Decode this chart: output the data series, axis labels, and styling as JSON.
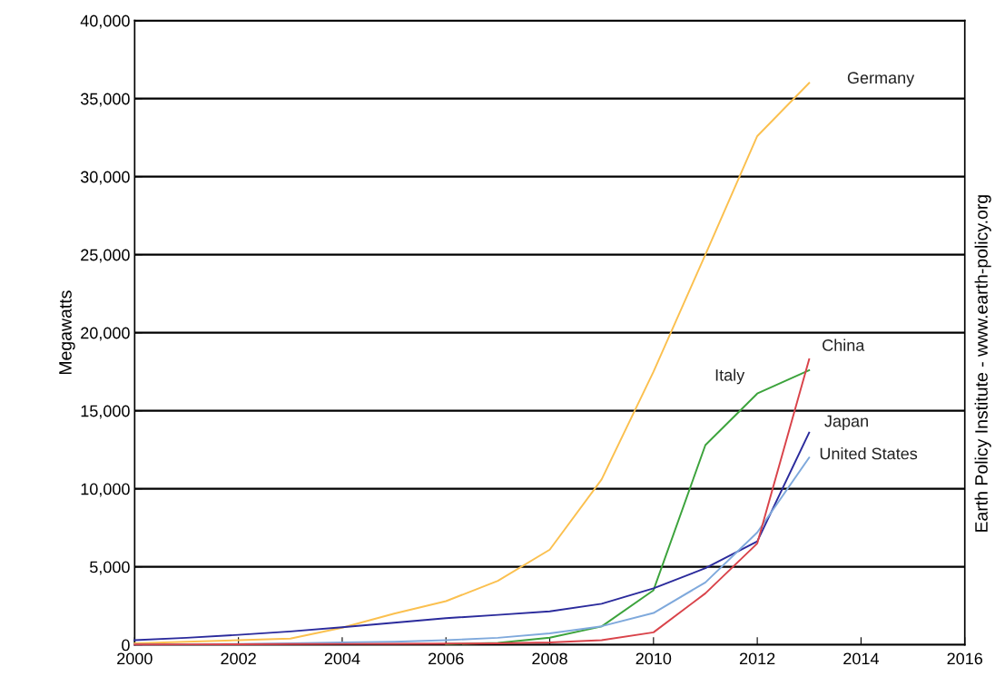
{
  "chart_data": {
    "type": "line",
    "ylabel": "Megawatts",
    "x": [
      2000,
      2001,
      2002,
      2003,
      2004,
      2005,
      2006,
      2007,
      2008,
      2009,
      2010,
      2011,
      2012,
      2013
    ],
    "series": [
      {
        "name": "Germany",
        "color": "#fbc04f",
        "values": [
          100,
          200,
          300,
          400,
          1100,
          2000,
          2800,
          4100,
          6100,
          10600,
          17500,
          25000,
          32600,
          36000
        ]
      },
      {
        "name": "Italy",
        "color": "#3ca33c",
        "values": [
          null,
          null,
          null,
          null,
          null,
          null,
          50,
          120,
          460,
          1180,
          3500,
          12800,
          16100,
          17600
        ]
      },
      {
        "name": "China",
        "color": "#d9434a",
        "values": [
          20,
          30,
          40,
          50,
          60,
          70,
          80,
          100,
          150,
          300,
          800,
          3300,
          6500,
          18300
        ]
      },
      {
        "name": "Japan",
        "color": "#2b2b9c",
        "values": [
          300,
          450,
          640,
          860,
          1130,
          1420,
          1710,
          1920,
          2140,
          2630,
          3620,
          4910,
          6630,
          13600
        ]
      },
      {
        "name": "United States",
        "color": "#7fa9dc",
        "values": [
          20,
          40,
          60,
          100,
          150,
          200,
          300,
          450,
          740,
          1190,
          2040,
          4000,
          7200,
          12000
        ]
      }
    ],
    "xlim": [
      2000,
      2016
    ],
    "xticks": [
      2000,
      2002,
      2004,
      2006,
      2008,
      2010,
      2012,
      2014,
      2016
    ],
    "ylim": [
      0,
      40000
    ],
    "yticks": [
      {
        "value": 0,
        "label": "0"
      },
      {
        "value": 5000,
        "label": "5,000"
      },
      {
        "value": 10000,
        "label": "10,000"
      },
      {
        "value": 15000,
        "label": "15,000"
      },
      {
        "value": 20000,
        "label": "20,000"
      },
      {
        "value": 25000,
        "label": "25,000"
      },
      {
        "value": 30000,
        "label": "30,000"
      },
      {
        "value": 35000,
        "label": "35,000"
      },
      {
        "value": 40000,
        "label": "40,000"
      }
    ],
    "grid": "y",
    "legend": false,
    "marker": "none",
    "line_style": "solid",
    "annotations": [
      "Earth Policy Institute - www.earth-policy.org"
    ]
  }
}
